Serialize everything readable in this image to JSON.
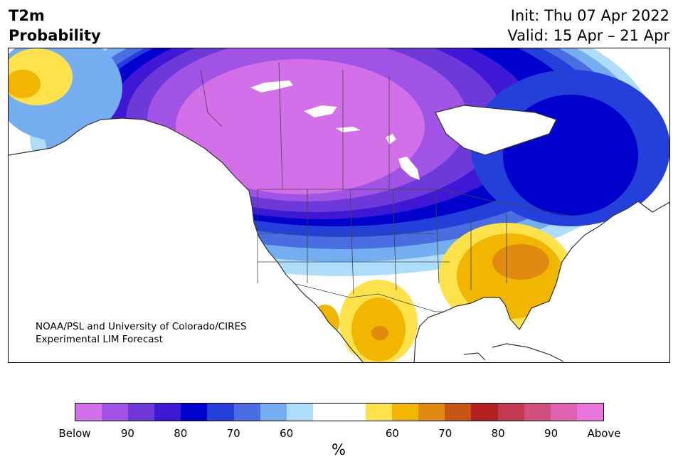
{
  "header": {
    "variable": "T2m",
    "product": "Probability",
    "init": "Init: Thu 07 Apr 2022",
    "valid": "Valid: 15 Apr – 21 Apr"
  },
  "credit": {
    "line1": "NOAA/PSL and University of Colorado/CIRES",
    "line2": "Experimental LIM Forecast"
  },
  "colorbar": {
    "unit": "%",
    "colors": [
      "#d36fe8",
      "#a053e4",
      "#6d3ad9",
      "#3f18d6",
      "#0000cd",
      "#2340da",
      "#4a6de2",
      "#74aef0",
      "#aedcfb",
      "#ffffff",
      "#ffffff",
      "#fde24c",
      "#f1b600",
      "#e08a10",
      "#c85514",
      "#b3201f",
      "#c23a51",
      "#d14f7e",
      "#de62b0",
      "#ea75dc"
    ],
    "labels": [
      "Below",
      "90",
      "80",
      "70",
      "60",
      "60",
      "70",
      "80",
      "90",
      "Above"
    ]
  },
  "map_legend": {
    "cold_side": "Below",
    "warm_side": "Above"
  }
}
